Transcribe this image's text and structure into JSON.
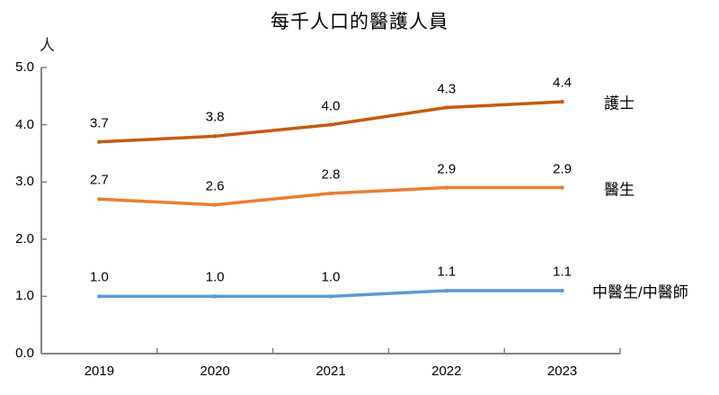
{
  "title": "每千人口的醫護人員",
  "chart_data": {
    "type": "line",
    "title": "每千人口的醫護人員",
    "unit_label": "人",
    "categories": [
      "2019",
      "2020",
      "2021",
      "2022",
      "2023"
    ],
    "series": [
      {
        "id": "nurses",
        "name": "護士",
        "values": [
          3.7,
          3.8,
          4.0,
          4.3,
          4.4
        ],
        "labels": [
          "3.7",
          "3.8",
          "4.0",
          "4.3",
          "4.4"
        ],
        "color": "#C55A11"
      },
      {
        "id": "doctors",
        "name": "醫生",
        "values": [
          2.7,
          2.6,
          2.8,
          2.9,
          2.9
        ],
        "labels": [
          "2.7",
          "2.6",
          "2.8",
          "2.9",
          "2.9"
        ],
        "color": "#ED7D31"
      },
      {
        "id": "chinese-medicine-practitioners",
        "name": "中醫生/中醫師",
        "values": [
          1.0,
          1.0,
          1.0,
          1.1,
          1.1
        ],
        "labels": [
          "1.0",
          "1.0",
          "1.0",
          "1.1",
          "1.1"
        ],
        "color": "#5B9BD5"
      }
    ],
    "xlabel": "",
    "ylabel": "人",
    "ylim": [
      0,
      5
    ],
    "ytick_labels": [
      "0.0",
      "1.0",
      "2.0",
      "3.0",
      "4.0",
      "5.0"
    ],
    "grid": false,
    "legend_position": "right-of-line-end",
    "axis_color": "#595959",
    "tick_color": "#7F7F7F"
  }
}
